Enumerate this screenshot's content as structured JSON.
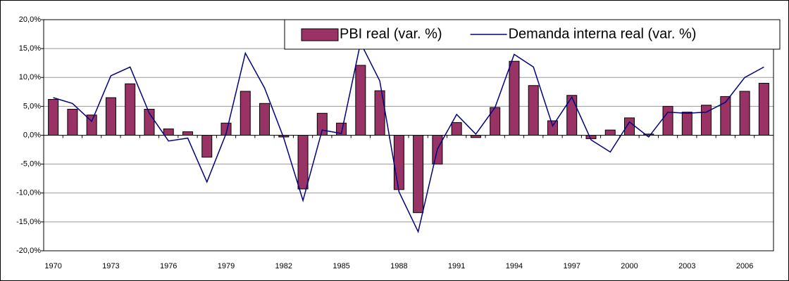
{
  "chart_data": {
    "type": "bar",
    "categories": [
      "1970",
      null,
      null,
      "1973",
      null,
      null,
      "1976",
      null,
      null,
      "1979",
      null,
      null,
      "1982",
      null,
      null,
      "1985",
      null,
      null,
      "1988",
      null,
      null,
      "1991",
      null,
      null,
      "1994",
      null,
      null,
      "1997",
      null,
      null,
      "2000",
      null,
      null,
      "2003",
      null,
      null,
      "2006",
      null
    ],
    "series": [
      {
        "name": "PBI real (var. %)",
        "type": "bar",
        "color": "#993366",
        "values": [
          6.2,
          4.5,
          3.5,
          6.5,
          8.9,
          4.5,
          1.1,
          0.6,
          -3.8,
          2.1,
          7.6,
          5.5,
          -0.3,
          -9.3,
          3.8,
          2.1,
          12.1,
          7.7,
          -9.4,
          -13.4,
          -5.0,
          2.2,
          -0.4,
          4.8,
          12.8,
          8.6,
          2.5,
          6.9,
          -0.6,
          0.9,
          3.0,
          0.2,
          5.0,
          4.0,
          5.2,
          6.7,
          7.6,
          9.0
        ]
      },
      {
        "name": "Demanda interna real (var. %)",
        "type": "line",
        "color": "#000080",
        "values": [
          6.5,
          5.5,
          2.4,
          10.3,
          11.8,
          3.8,
          -1.0,
          -0.5,
          -8.1,
          0.3,
          14.2,
          8.2,
          -0.5,
          -11.3,
          0.9,
          0.3,
          16.0,
          9.4,
          -9.8,
          -16.7,
          -2.4,
          3.6,
          0.2,
          4.8,
          14.0,
          11.8,
          1.6,
          6.6,
          -0.8,
          -2.9,
          2.3,
          -0.3,
          4.0,
          3.8,
          4.0,
          5.7,
          10.0,
          11.8
        ]
      }
    ],
    "ylim": [
      -20,
      20
    ],
    "yticks": [
      {
        "value": -20,
        "label": "-20,0%"
      },
      {
        "value": -15,
        "label": "-15,0%"
      },
      {
        "value": -10,
        "label": "-10,0%"
      },
      {
        "value": -5,
        "label": "-5,0%"
      },
      {
        "value": 0,
        "label": "0,0%"
      },
      {
        "value": 5,
        "label": "5,0%"
      },
      {
        "value": 10,
        "label": "10,0%"
      },
      {
        "value": 15,
        "label": "15,0%"
      },
      {
        "value": 20,
        "label": "20,0%"
      }
    ],
    "grid": true,
    "legend": "top-right"
  }
}
